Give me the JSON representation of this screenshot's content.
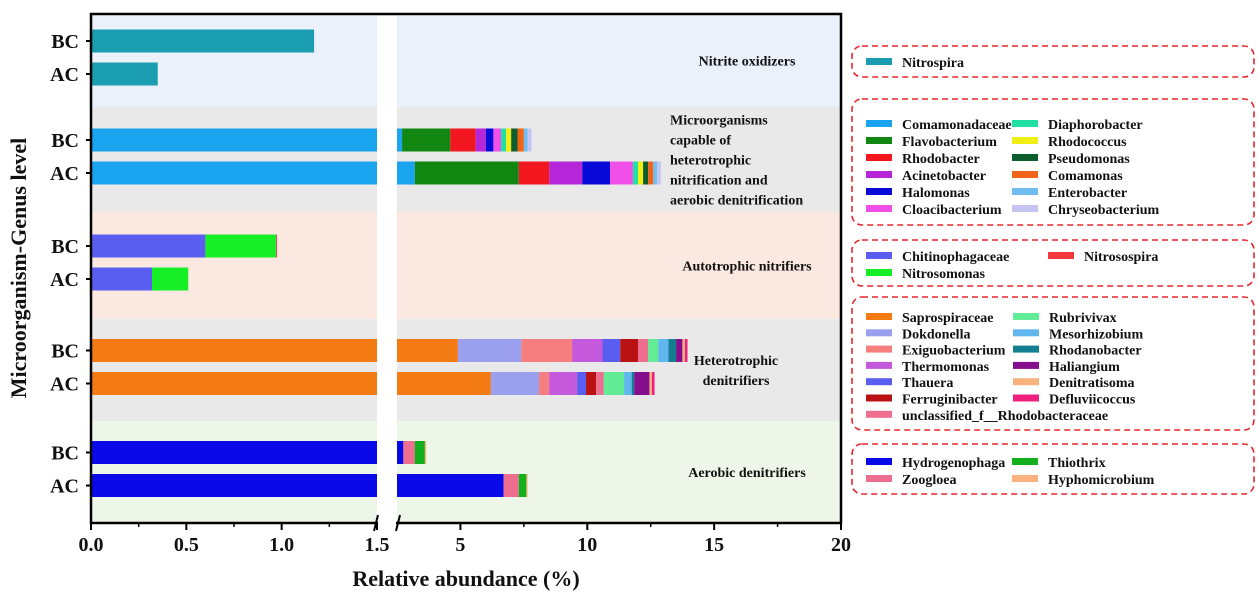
{
  "chart_data": {
    "type": "bar",
    "orientation": "horizontal",
    "stacked": true,
    "axis_break": true,
    "xlabel": "Relative abundance (%)",
    "ylabel": "Microorganism-Genus level",
    "x_ticks": [
      "0.0",
      "0.5",
      "1.0",
      "1.5",
      "5",
      "10",
      "15",
      "20"
    ],
    "x_segments": [
      {
        "range": [
          0,
          1.5
        ]
      },
      {
        "range": [
          2.5,
          20
        ]
      }
    ],
    "groups": [
      {
        "label": "Nitrite oxidizers",
        "bg_color": "#eaf1fa",
        "samples": [
          {
            "name": "BC",
            "segments": [
              {
                "taxon": "Nitrospira",
                "value": 1.17
              }
            ]
          },
          {
            "name": "AC",
            "segments": [
              {
                "taxon": "Nitrospira",
                "value": 0.35
              }
            ]
          }
        ],
        "legend": [
          {
            "name": "Nitrospira",
            "color": "#1a9db0"
          }
        ]
      },
      {
        "label": "Microorganisms capable of heterotrophic nitrification and aerobic denitrification",
        "label_lines": [
          "Microorganisms",
          "capable of",
          "heterotrophic",
          "nitrification and",
          "aerobic denitrification"
        ],
        "bg_color": "#e9e9e9",
        "samples": [
          {
            "name": "BC",
            "segments": [
              {
                "taxon": "Comamonadaceae",
                "value": 2.7
              },
              {
                "taxon": "Flavobacterium",
                "value": 1.9
              },
              {
                "taxon": "Rhodobacter",
                "value": 1.0
              },
              {
                "taxon": "Acinetobacter",
                "value": 0.4
              },
              {
                "taxon": "Halomonas",
                "value": 0.3
              },
              {
                "taxon": "Cloacibacterium",
                "value": 0.3
              },
              {
                "taxon": "Diaphorobacter",
                "value": 0.2
              },
              {
                "taxon": "Rhodococcus",
                "value": 0.2
              },
              {
                "taxon": "Pseudomonas",
                "value": 0.25
              },
              {
                "taxon": "Comamonas",
                "value": 0.25
              },
              {
                "taxon": "Enterobacter",
                "value": 0.15
              },
              {
                "taxon": "Chryseobacterium",
                "value": 0.15
              }
            ]
          },
          {
            "name": "AC",
            "segments": [
              {
                "taxon": "Comamonadaceae",
                "value": 3.2
              },
              {
                "taxon": "Flavobacterium",
                "value": 4.1
              },
              {
                "taxon": "Rhodobacter",
                "value": 1.2
              },
              {
                "taxon": "Acinetobacter",
                "value": 1.3
              },
              {
                "taxon": "Halomonas",
                "value": 1.1
              },
              {
                "taxon": "Cloacibacterium",
                "value": 0.9
              },
              {
                "taxon": "Diaphorobacter",
                "value": 0.2
              },
              {
                "taxon": "Rhodococcus",
                "value": 0.2
              },
              {
                "taxon": "Pseudomonas",
                "value": 0.2
              },
              {
                "taxon": "Comamonas",
                "value": 0.2
              },
              {
                "taxon": "Enterobacter",
                "value": 0.15
              },
              {
                "taxon": "Chryseobacterium",
                "value": 0.15
              }
            ]
          }
        ],
        "legend": [
          {
            "name": "Comamonadaceae",
            "color": "#1aa3ee"
          },
          {
            "name": "Flavobacterium",
            "color": "#118711"
          },
          {
            "name": "Rhodobacter",
            "color": "#f2161f"
          },
          {
            "name": "Acinetobacter",
            "color": "#b526d8"
          },
          {
            "name": "Halomonas",
            "color": "#0a0ad8"
          },
          {
            "name": "Cloacibacterium",
            "color": "#f04fe8"
          },
          {
            "name": "Diaphorobacter",
            "color": "#21e0a2"
          },
          {
            "name": "Rhodococcus",
            "color": "#f0ee14"
          },
          {
            "name": "Pseudomonas",
            "color": "#0c5e2e"
          },
          {
            "name": "Comamonas",
            "color": "#f0641a"
          },
          {
            "name": "Enterobacter",
            "color": "#6fbef0"
          },
          {
            "name": "Chryseobacterium",
            "color": "#c5c4f2"
          }
        ]
      },
      {
        "label": "Autotrophic nitrifiers",
        "bg_color": "#fbe8e0",
        "samples": [
          {
            "name": "BC",
            "segments": [
              {
                "taxon": "Chitinophagaceae",
                "value": 0.6
              },
              {
                "taxon": "Nitrosomonas",
                "value": 0.37
              },
              {
                "taxon": "Nitrosospira",
                "value": 0.005
              }
            ]
          },
          {
            "name": "AC",
            "segments": [
              {
                "taxon": "Chitinophagaceae",
                "value": 0.32
              },
              {
                "taxon": "Nitrosomonas",
                "value": 0.19
              }
            ]
          }
        ],
        "legend": [
          {
            "name": "Chitinophagaceae",
            "color": "#5a5ef0"
          },
          {
            "name": "Nitrosospira",
            "color": "#f2393b"
          },
          {
            "name": "Nitrosomonas",
            "color": "#16ee26"
          }
        ]
      },
      {
        "label": "Heterotrophic denitrifiers",
        "label_lines": [
          "Heterotrophic",
          "denitrifiers"
        ],
        "bg_color": "#e9e9e9",
        "samples": [
          {
            "name": "BC",
            "segments": [
              {
                "taxon": "Saprospiraceae",
                "value": 4.9
              },
              {
                "taxon": "Dokdonella",
                "value": 2.5
              },
              {
                "taxon": "Exiguobacterium",
                "value": 2.0
              },
              {
                "taxon": "Thermomonas",
                "value": 1.2
              },
              {
                "taxon": "Thauera",
                "value": 0.7
              },
              {
                "taxon": "Ferruginibacter",
                "value": 0.7
              },
              {
                "taxon": "unclassified_f__Rhodobacteraceae",
                "value": 0.4
              },
              {
                "taxon": "Rubrivivax",
                "value": 0.4
              },
              {
                "taxon": "Mesorhizobium",
                "value": 0.4
              },
              {
                "taxon": "Rhodanobacter",
                "value": 0.3
              },
              {
                "taxon": "Haliangium",
                "value": 0.25
              },
              {
                "taxon": "Denitratisoma",
                "value": 0.1
              },
              {
                "taxon": "Defluviicoccus",
                "value": 0.1
              }
            ]
          },
          {
            "name": "AC",
            "segments": [
              {
                "taxon": "Saprospiraceae",
                "value": 6.2
              },
              {
                "taxon": "Dokdonella",
                "value": 1.9
              },
              {
                "taxon": "Exiguobacterium",
                "value": 0.4
              },
              {
                "taxon": "Thermomonas",
                "value": 1.1
              },
              {
                "taxon": "Thauera",
                "value": 0.35
              },
              {
                "taxon": "Ferruginibacter",
                "value": 0.4
              },
              {
                "taxon": "unclassified_f__Rhodobacteraceae",
                "value": 0.3
              },
              {
                "taxon": "Rubrivivax",
                "value": 0.8
              },
              {
                "taxon": "Mesorhizobium",
                "value": 0.3
              },
              {
                "taxon": "Rhodanobacter",
                "value": 0.1
              },
              {
                "taxon": "Haliangium",
                "value": 0.6
              },
              {
                "taxon": "Denitratisoma",
                "value": 0.1
              },
              {
                "taxon": "Defluviicoccus",
                "value": 0.1
              }
            ]
          }
        ],
        "legend": [
          {
            "name": "Saprospiraceae",
            "color": "#f47b14"
          },
          {
            "name": "Rubrivivax",
            "color": "#62ec96"
          },
          {
            "name": "Dokdonella",
            "color": "#9aa0ee"
          },
          {
            "name": "Mesorhizobium",
            "color": "#62b6ee"
          },
          {
            "name": "Exiguobacterium",
            "color": "#f67e7e"
          },
          {
            "name": "Rhodanobacter",
            "color": "#127e90"
          },
          {
            "name": "Thermomonas",
            "color": "#c559dc"
          },
          {
            "name": "Haliangium",
            "color": "#840e8e"
          },
          {
            "name": "Thauera",
            "color": "#5a5ef0"
          },
          {
            "name": "Denitratisoma",
            "color": "#f9b27e"
          },
          {
            "name": "Ferruginibacter",
            "color": "#b81212"
          },
          {
            "name": "Defluviicoccus",
            "color": "#f01e7e"
          },
          {
            "name": "unclassified_f__Rhodobacteraceae",
            "color": "#ee6e90"
          }
        ]
      },
      {
        "label": "Aerobic denitrifiers",
        "bg_color": "#eef6ea",
        "samples": [
          {
            "name": "BC",
            "segments": [
              {
                "taxon": "Hydrogenophaga",
                "value": 2.75
              },
              {
                "taxon": "Zoogloea",
                "value": 0.45
              },
              {
                "taxon": "Thiothrix",
                "value": 0.4
              },
              {
                "taxon": "Hyphomicrobium",
                "value": 0.05
              }
            ]
          },
          {
            "name": "AC",
            "segments": [
              {
                "taxon": "Hydrogenophaga",
                "value": 6.7
              },
              {
                "taxon": "Zoogloea",
                "value": 0.6
              },
              {
                "taxon": "Thiothrix",
                "value": 0.3
              },
              {
                "taxon": "Hyphomicrobium",
                "value": 0.05
              }
            ]
          }
        ],
        "legend": [
          {
            "name": "Hydrogenophaga",
            "color": "#0a0ae8"
          },
          {
            "name": "Thiothrix",
            "color": "#13b01e"
          },
          {
            "name": "Zoogloea",
            "color": "#ee6e90"
          },
          {
            "name": "Hyphomicrobium",
            "color": "#f9b27e"
          }
        ]
      }
    ]
  }
}
